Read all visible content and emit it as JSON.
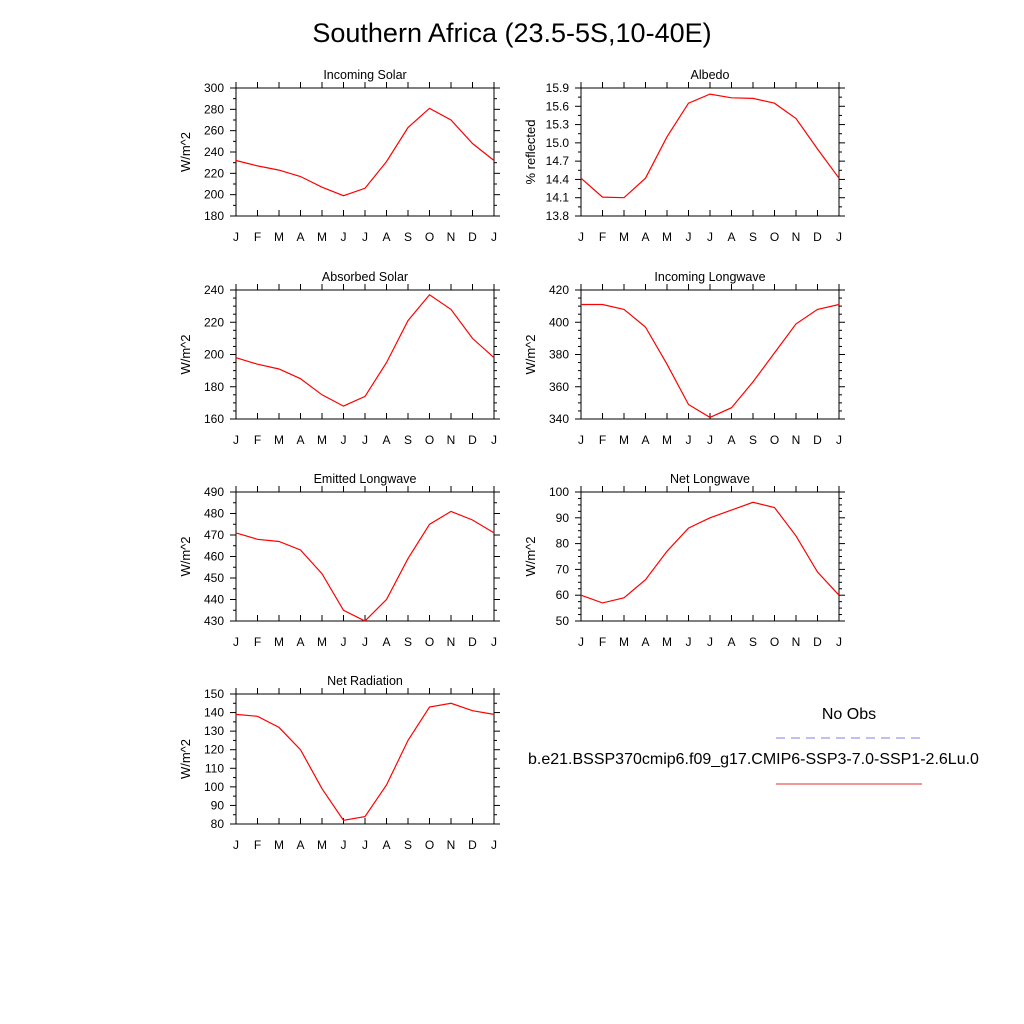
{
  "page": {
    "title": "Southern Africa (23.5-5S,10-40E)"
  },
  "legend": {
    "obs_label": "No Obs",
    "obs_color": "#8080e0",
    "case_label": "b.e21.BSSP370cmip6.f09_g17.CMIP6-SSP3-7.0-SSP1-2.6Lu.0",
    "case_color": "#e03030"
  },
  "months": [
    "J",
    "F",
    "M",
    "A",
    "M",
    "J",
    "J",
    "A",
    "S",
    "O",
    "N",
    "D",
    "J"
  ],
  "chart_data": [
    {
      "type": "line",
      "title": "Incoming Solar",
      "ylabel": "W/m^2",
      "ylim": [
        180,
        300
      ],
      "yticks": [
        "180",
        "200",
        "220",
        "240",
        "260",
        "280",
        "300"
      ],
      "series": [
        {
          "color": "#ff0000",
          "values": [
            232,
            227,
            223,
            217,
            207,
            199,
            206,
            231,
            263,
            281,
            270,
            248,
            232
          ]
        }
      ]
    },
    {
      "type": "line",
      "title": "Albedo",
      "ylabel": "% reflected",
      "ylim": [
        13.8,
        15.9
      ],
      "yticks": [
        "13.8",
        "14.1",
        "14.4",
        "14.7",
        "15.0",
        "15.3",
        "15.6",
        "15.9"
      ],
      "series": [
        {
          "color": "#ff0000",
          "values": [
            14.42,
            14.11,
            14.1,
            14.42,
            15.1,
            15.65,
            15.8,
            15.74,
            15.73,
            15.65,
            15.4,
            14.9,
            14.42
          ]
        }
      ]
    },
    {
      "type": "line",
      "title": "Absorbed Solar",
      "ylabel": "W/m^2",
      "ylim": [
        160,
        240
      ],
      "yticks": [
        "160",
        "180",
        "200",
        "220",
        "240"
      ],
      "series": [
        {
          "color": "#ff0000",
          "values": [
            198,
            194,
            191,
            185,
            175,
            168,
            174,
            195,
            221,
            237,
            228,
            210,
            198
          ]
        }
      ]
    },
    {
      "type": "line",
      "title": "Incoming Longwave",
      "ylabel": "W/m^2",
      "ylim": [
        340,
        420
      ],
      "yticks": [
        "340",
        "360",
        "380",
        "400",
        "420"
      ],
      "series": [
        {
          "color": "#ff0000",
          "values": [
            411,
            411,
            408,
            397,
            374,
            349,
            341,
            347,
            363,
            381,
            399,
            408,
            411
          ]
        }
      ]
    },
    {
      "type": "line",
      "title": "Emitted Longwave",
      "ylabel": "W/m^2",
      "ylim": [
        430,
        490
      ],
      "yticks": [
        "430",
        "440",
        "450",
        "460",
        "470",
        "480",
        "490"
      ],
      "series": [
        {
          "color": "#ff0000",
          "values": [
            471,
            468,
            467,
            463,
            452,
            435,
            430,
            440,
            459,
            475,
            481,
            477,
            471
          ]
        }
      ]
    },
    {
      "type": "line",
      "title": "Net Longwave",
      "ylabel": "W/m^2",
      "ylim": [
        50,
        100
      ],
      "yticks": [
        "50",
        "60",
        "70",
        "80",
        "90",
        "100"
      ],
      "series": [
        {
          "color": "#ff0000",
          "values": [
            60,
            57,
            59,
            66,
            77,
            86,
            90,
            93,
            96,
            94,
            83,
            69,
            60
          ]
        }
      ]
    },
    {
      "type": "line",
      "title": "Net Radiation",
      "ylabel": "W/m^2",
      "ylim": [
        80,
        150
      ],
      "yticks": [
        "80",
        "90",
        "100",
        "110",
        "120",
        "130",
        "140",
        "150"
      ],
      "series": [
        {
          "color": "#ff0000",
          "values": [
            139,
            138,
            132,
            120,
            99,
            82,
            84,
            101,
            125,
            143,
            145,
            141,
            139
          ]
        }
      ]
    }
  ]
}
